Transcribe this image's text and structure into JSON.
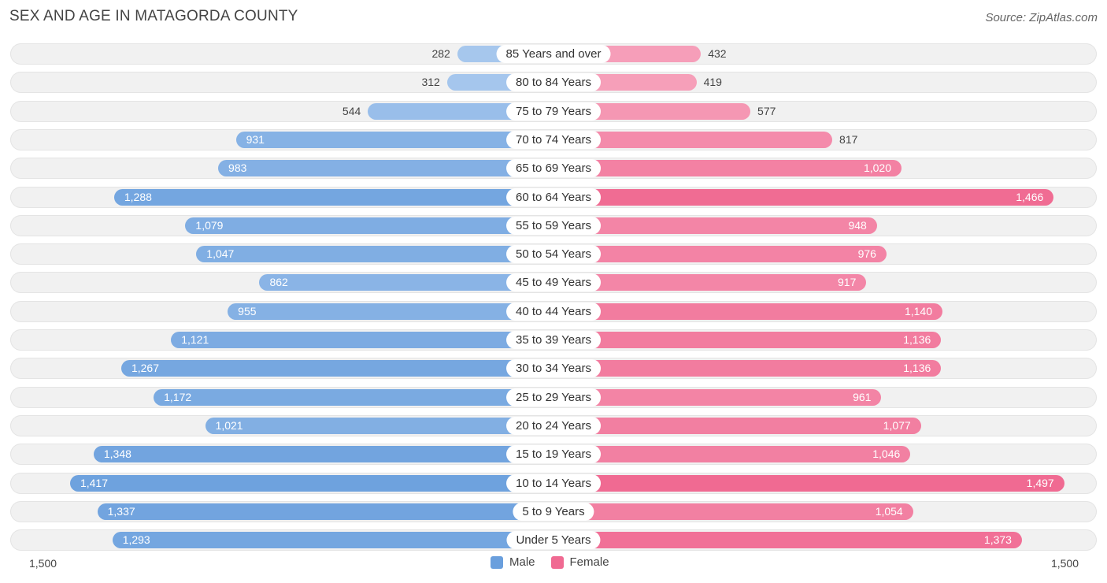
{
  "chart_data": {
    "type": "bar",
    "title": "SEX AND AGE IN MATAGORDA COUNTY",
    "source": "Source: ZipAtlas.com",
    "categories": [
      "85 Years and over",
      "80 to 84 Years",
      "75 to 79 Years",
      "70 to 74 Years",
      "65 to 69 Years",
      "60 to 64 Years",
      "55 to 59 Years",
      "50 to 54 Years",
      "45 to 49 Years",
      "40 to 44 Years",
      "35 to 39 Years",
      "30 to 34 Years",
      "25 to 29 Years",
      "20 to 24 Years",
      "15 to 19 Years",
      "10 to 14 Years",
      "5 to 9 Years",
      "Under 5 Years"
    ],
    "series": [
      {
        "name": "Male",
        "values": [
          282,
          312,
          544,
          931,
          983,
          1288,
          1079,
          1047,
          862,
          955,
          1121,
          1267,
          1172,
          1021,
          1348,
          1417,
          1337,
          1293
        ],
        "labels": [
          "282",
          "312",
          "544",
          "931",
          "983",
          "1,288",
          "1,079",
          "1,047",
          "862",
          "955",
          "1,121",
          "1,267",
          "1,172",
          "1,021",
          "1,348",
          "1,417",
          "1,337",
          "1,293"
        ]
      },
      {
        "name": "Female",
        "values": [
          432,
          419,
          577,
          817,
          1020,
          1466,
          948,
          976,
          917,
          1140,
          1136,
          1136,
          961,
          1077,
          1046,
          1497,
          1054,
          1373
        ],
        "labels": [
          "432",
          "419",
          "577",
          "817",
          "1,020",
          "1,466",
          "948",
          "976",
          "917",
          "1,140",
          "1,136",
          "1,136",
          "961",
          "1,077",
          "1,046",
          "1,497",
          "1,054",
          "1,373"
        ]
      }
    ],
    "xlim": [
      0,
      1500
    ],
    "axis_left_label": "1,500",
    "axis_right_label": "1,500",
    "colors": {
      "male": "#6a9fdd",
      "male_light": "#a9c9ee",
      "female": "#f06a92",
      "female_light": "#f7a8c0"
    }
  }
}
